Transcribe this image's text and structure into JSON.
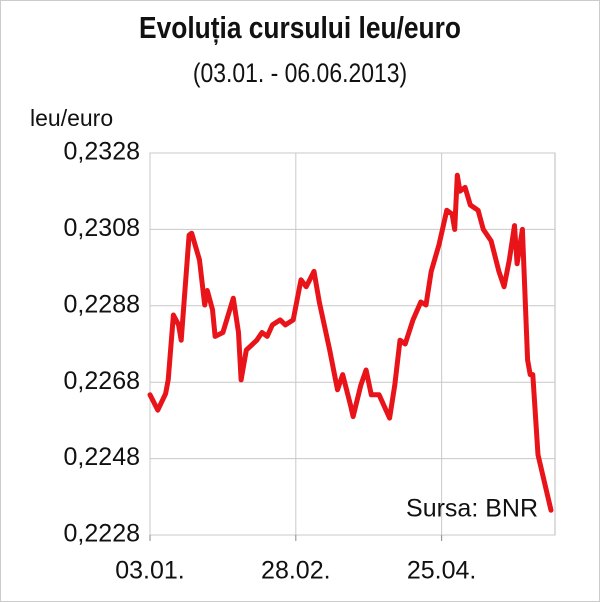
{
  "chart_data": {
    "type": "line",
    "title": "Evoluția cursului leu/euro",
    "subtitle": "(03.01. - 06.06.2013)",
    "y_label": "leu/euro",
    "annotation": "Sursa: BNR",
    "color": "#e8141a",
    "grid": true,
    "x": [
      "03.01.",
      "06.01.",
      "09.01.",
      "10.01.",
      "12.01.",
      "14.01.",
      "15.01.",
      "18.01.",
      "19.01.",
      "22.01.",
      "24.01.",
      "25.01.",
      "27.01.",
      "28.01.",
      "31.01.",
      "04.02.",
      "06.02.",
      "07.02.",
      "09.02.",
      "13.02.",
      "15.02.",
      "17.02.",
      "19.02.",
      "22.02.",
      "24.02.",
      "27.02.",
      "02.03.",
      "04.03.",
      "07.03.",
      "09.03.",
      "13.03.",
      "16.03.",
      "18.03.",
      "21.03.",
      "22.03.",
      "25.03.",
      "27.03.",
      "29.03.",
      "01.04.",
      "05.04.",
      "07.04.",
      "09.04.",
      "11.04.",
      "14.04.",
      "17.04.",
      "19.04.",
      "21.04.",
      "24.04.",
      "27.04.",
      "29.04.",
      "30.04.",
      "01.05.",
      "02.05.",
      "04.05.",
      "06.05.",
      "09.05.",
      "11.05.",
      "14.05.",
      "17.05.",
      "19.05.",
      "21.05.",
      "23.05.",
      "24.05.",
      "26.05.",
      "28.05.",
      "29.05.",
      "30.05.",
      "01.06.",
      "06.06."
    ],
    "values": [
      0.22647,
      0.22607,
      0.2265,
      0.22686,
      0.22856,
      0.2283,
      0.2279,
      0.23065,
      0.2307,
      0.23,
      0.22882,
      0.2292,
      0.2287,
      0.228,
      0.2281,
      0.229,
      0.2281,
      0.22686,
      0.22764,
      0.2279,
      0.2281,
      0.228,
      0.2283,
      0.22843,
      0.2283,
      0.22843,
      0.22948,
      0.2293,
      0.2297,
      0.2289,
      0.22764,
      0.2266,
      0.227,
      0.2262,
      0.2259,
      0.22673,
      0.22712,
      0.22647,
      0.22647,
      0.22586,
      0.22673,
      0.2279,
      0.2278,
      0.22843,
      0.2289,
      0.22882,
      0.2297,
      0.2304,
      0.2313,
      0.2312,
      0.2308,
      0.23222,
      0.2318,
      0.2319,
      0.23144,
      0.2313,
      0.2308,
      0.2305,
      0.2297,
      0.2293,
      0.23,
      0.2309,
      0.2299,
      0.2308,
      0.22738,
      0.227,
      0.227,
      0.2249,
      0.22345
    ],
    "xlim": [
      "03.01.",
      "06.06."
    ],
    "xticks": [
      "03.01.",
      "28.02.",
      "25.04."
    ],
    "ylim": [
      0.2228,
      0.2328
    ],
    "yticks": [
      {
        "value": 0.2228,
        "label": "0,2228"
      },
      {
        "value": 0.2248,
        "label": "0,2248"
      },
      {
        "value": 0.2268,
        "label": "0,2268"
      },
      {
        "value": 0.2288,
        "label": "0,2288"
      },
      {
        "value": 0.2308,
        "label": "0,2308"
      },
      {
        "value": 0.2328,
        "label": "0,2328"
      }
    ]
  }
}
